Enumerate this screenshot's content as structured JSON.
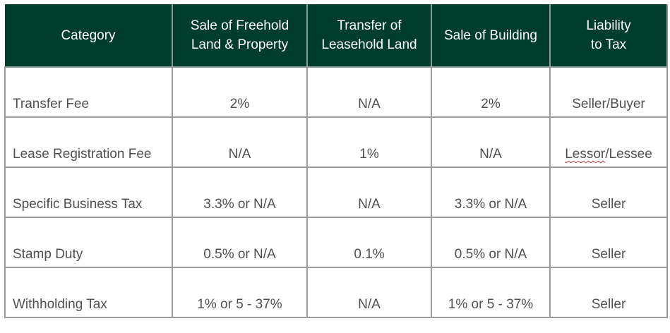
{
  "colors": {
    "header_bg": "#003d2c",
    "header_text": "#ffffff",
    "cell_text": "#505050",
    "grid": "#9a9a9a"
  },
  "table": {
    "headers": [
      "Category",
      "Sale of Freehold Land & Property",
      "Transfer of Leasehold Land",
      "Sale of Building",
      "Liability to Tax"
    ],
    "header_lines": [
      [
        "Category"
      ],
      [
        "Sale of Freehold",
        "Land & Property"
      ],
      [
        "Transfer of",
        "Leasehold Land"
      ],
      [
        "Sale of Building"
      ],
      [
        "Liability",
        "to Tax"
      ]
    ],
    "rows": [
      [
        "Transfer Fee",
        "2%",
        "N/A",
        "2%",
        "Seller/Buyer"
      ],
      [
        "Lease Registration Fee",
        "N/A",
        "1%",
        "N/A",
        "Lessor/Lessee"
      ],
      [
        "Specific Business Tax",
        "3.3% or N/A",
        "N/A",
        "3.3% or N/A",
        "Seller"
      ],
      [
        "Stamp Duty",
        "0.5% or N/A",
        "0.1%",
        "0.5% or N/A",
        "Seller"
      ],
      [
        "Withholding Tax",
        "1% or 5 - 37%",
        "N/A",
        "1% or 5 - 37%",
        "Seller"
      ]
    ]
  }
}
